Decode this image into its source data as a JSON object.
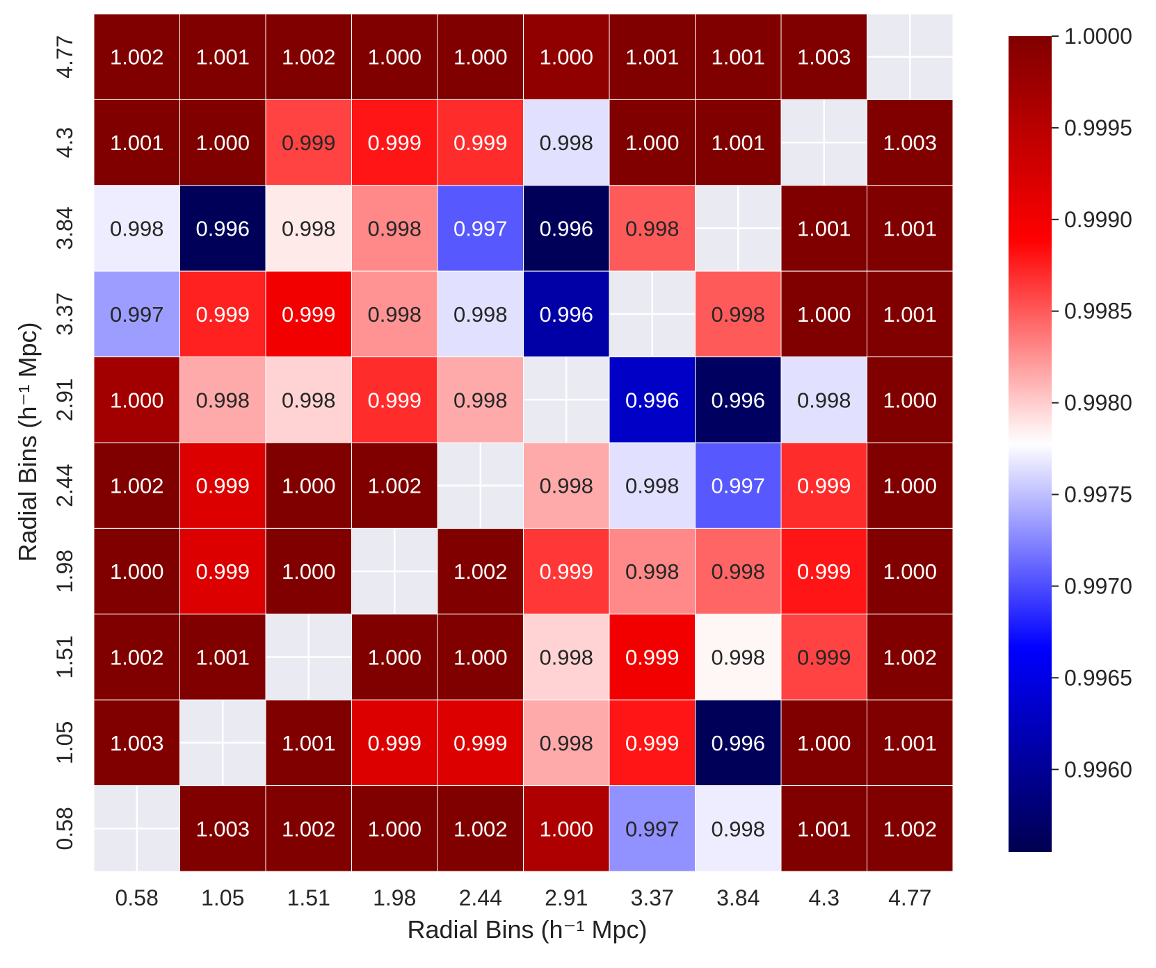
{
  "chart_data": {
    "type": "heatmap",
    "title": "",
    "xlabel": "Radial Bins (h⁻¹ Mpc)",
    "ylabel": "Radial Bins (h⁻¹ Mpc)",
    "x_categories": [
      "0.58",
      "1.05",
      "1.51",
      "1.98",
      "2.44",
      "2.91",
      "3.37",
      "3.84",
      "4.3",
      "4.77"
    ],
    "y_categories_top_to_bottom": [
      "4.77",
      "4.3",
      "3.84",
      "3.37",
      "2.91",
      "2.44",
      "1.98",
      "1.51",
      "1.05",
      "0.58"
    ],
    "values_top_to_bottom": [
      [
        "1.002",
        "1.001",
        "1.002",
        "1.000",
        "1.000",
        "1.000",
        "1.001",
        "1.001",
        "1.003",
        null
      ],
      [
        "1.001",
        "1.000",
        "0.999",
        "0.999",
        "0.999",
        "0.998",
        "1.000",
        "1.001",
        null,
        "1.003"
      ],
      [
        "0.998",
        "0.996",
        "0.998",
        "0.998",
        "0.997",
        "0.996",
        "0.998",
        null,
        "1.001",
        "1.001"
      ],
      [
        "0.997",
        "0.999",
        "0.999",
        "0.998",
        "0.998",
        "0.996",
        null,
        "0.998",
        "1.000",
        "1.001"
      ],
      [
        "1.000",
        "0.998",
        "0.998",
        "0.999",
        "0.998",
        null,
        "0.996",
        "0.996",
        "0.998",
        "1.000"
      ],
      [
        "1.002",
        "0.999",
        "1.000",
        "1.002",
        null,
        "0.998",
        "0.998",
        "0.997",
        "0.999",
        "1.000"
      ],
      [
        "1.000",
        "0.999",
        "1.000",
        null,
        "1.002",
        "0.999",
        "0.998",
        "0.998",
        "0.999",
        "1.000"
      ],
      [
        "1.002",
        "1.001",
        null,
        "1.000",
        "1.000",
        "0.998",
        "0.999",
        "0.998",
        "0.999",
        "1.002"
      ],
      [
        "1.003",
        null,
        "1.001",
        "0.999",
        "0.999",
        "0.998",
        "0.999",
        "0.996",
        "1.000",
        "1.001"
      ],
      [
        null,
        "1.003",
        "1.002",
        "1.000",
        "1.002",
        "1.000",
        "0.997",
        "0.998",
        "1.001",
        "1.002"
      ]
    ],
    "color_values_top_to_bottom": [
      [
        1.0002,
        1.0001,
        1.0002,
        1.0,
        1.0,
        0.99985,
        1.0001,
        1.0001,
        1.0003,
        null
      ],
      [
        1.0001,
        1.0,
        0.9986,
        0.9988,
        0.9987,
        0.99765,
        1.0,
        1.0001,
        null,
        1.0003
      ],
      [
        0.9977,
        0.9956,
        0.99787,
        0.9983,
        0.99705,
        0.9956,
        0.9985,
        null,
        1.0001,
        1.0001
      ],
      [
        0.99735,
        0.99875,
        0.999,
        0.99825,
        0.99765,
        0.9961,
        null,
        0.9985,
        1.0,
        1.0001
      ],
      [
        0.9997,
        0.99815,
        0.99797,
        0.9987,
        0.99815,
        null,
        0.9963,
        0.99565,
        0.99765,
        1.0
      ],
      [
        1.0002,
        0.9992,
        1.0,
        1.0002,
        null,
        0.99815,
        0.99765,
        0.99705,
        0.9987,
        1.0
      ],
      [
        1.0,
        0.9992,
        1.0,
        null,
        1.0002,
        0.99865,
        0.9983,
        0.99845,
        0.9988,
        1.0
      ],
      [
        1.0002,
        1.0001,
        null,
        1.0,
        1.0,
        0.99797,
        0.999,
        0.99782,
        0.9986,
        1.0002
      ],
      [
        1.0003,
        null,
        1.0001,
        0.9992,
        0.9992,
        0.99815,
        0.9988,
        0.9956,
        1.0,
        1.0001
      ],
      [
        null,
        1.0003,
        1.0002,
        1.0,
        1.0002,
        0.9996,
        0.9973,
        0.9977,
        1.0001,
        1.0002
      ]
    ],
    "colorbar": {
      "vmin": 0.99555,
      "vmax": 1.0,
      "vcenter": 0.99778,
      "ticks": [
        "1.0000",
        "0.9995",
        "0.9990",
        "0.9985",
        "0.9980",
        "0.9975",
        "0.9970",
        "0.9965",
        "0.9960"
      ],
      "colors": {
        "low": "#000050",
        "mid_low": "#0000ff",
        "center": "#ffffff",
        "mid_high": "#ff0000",
        "high": "#800000"
      }
    },
    "masked_color": "#eaeaf2",
    "grid": true
  }
}
